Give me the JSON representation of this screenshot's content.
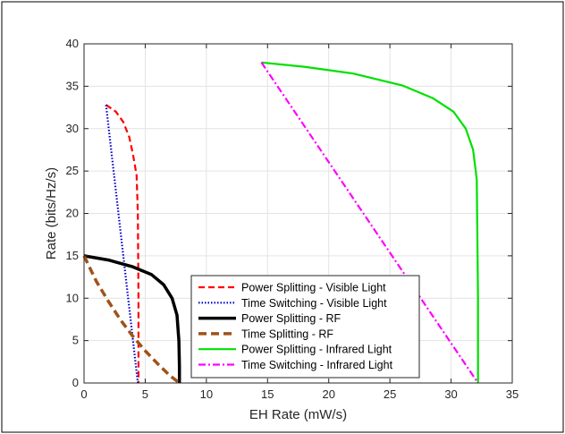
{
  "chart_data": {
    "type": "line",
    "title": "",
    "xlabel": "EH Rate (mW/s)",
    "ylabel": "Rate (bits/Hz/s)",
    "xlim": [
      0,
      35
    ],
    "ylim": [
      0,
      40
    ],
    "xticks": [
      0,
      5,
      10,
      15,
      20,
      25,
      30,
      35
    ],
    "yticks": [
      0,
      5,
      10,
      15,
      20,
      25,
      30,
      35,
      40
    ],
    "grid": true,
    "legend_position": "bottom-center",
    "series": [
      {
        "name": "Power Splitting - Visible Light",
        "color": "#ff0000",
        "dash": "dashed",
        "x": [
          1.8,
          2.6,
          3.2,
          3.7,
          4.0,
          4.3,
          4.4,
          4.45,
          4.45
        ],
        "y": [
          32.8,
          32.0,
          30.8,
          29.0,
          27.0,
          24.5,
          20.0,
          10.0,
          0.0
        ]
      },
      {
        "name": "Time Switching - Visible Light",
        "color": "#0000cc",
        "dash": "dotted",
        "x": [
          1.8,
          4.4
        ],
        "y": [
          32.8,
          0.0
        ]
      },
      {
        "name": "Power Splitting - RF",
        "color": "#000000",
        "dash": "solid-thick",
        "x": [
          0.0,
          2.0,
          4.0,
          5.5,
          6.5,
          7.2,
          7.6,
          7.75,
          7.8,
          7.8
        ],
        "y": [
          15.0,
          14.5,
          13.7,
          12.8,
          11.6,
          10.0,
          8.0,
          5.0,
          2.0,
          0.0
        ]
      },
      {
        "name": "Time Splitting - RF",
        "color": "#a0521a",
        "dash": "dashed-thick",
        "x": [
          0.0,
          1.0,
          2.0,
          3.0,
          4.0,
          5.0,
          6.0,
          7.0,
          7.8
        ],
        "y": [
          15.0,
          12.0,
          9.6,
          7.4,
          5.5,
          3.8,
          2.3,
          0.9,
          0.0
        ]
      },
      {
        "name": "Power Splitting - Infrared Light",
        "color": "#00e000",
        "dash": "solid",
        "x": [
          14.5,
          18.0,
          22.0,
          26.0,
          28.5,
          30.2,
          31.2,
          31.8,
          32.1,
          32.2,
          32.2
        ],
        "y": [
          37.8,
          37.3,
          36.5,
          35.1,
          33.6,
          32.0,
          30.0,
          27.5,
          24.0,
          10.0,
          0.0
        ]
      },
      {
        "name": "Time Switching - Infrared Light",
        "color": "#ff00ff",
        "dash": "dashdot",
        "x": [
          14.5,
          32.2
        ],
        "y": [
          37.8,
          0.0
        ]
      }
    ]
  }
}
